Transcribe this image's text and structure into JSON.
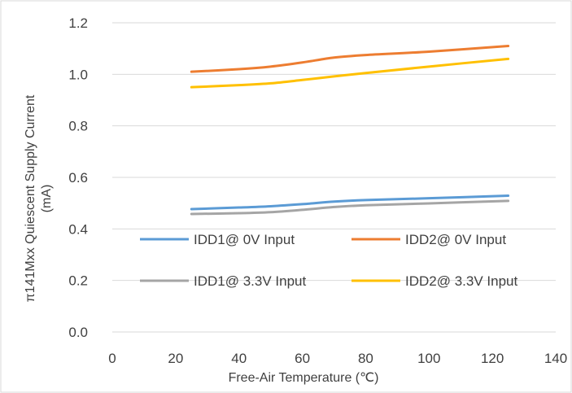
{
  "chart_data": {
    "type": "line",
    "xlabel": "Free-Air Temperature (℃)",
    "ylabel": [
      "π141Mxx Quiescent Supply Current",
      "(mA)"
    ],
    "xlim": [
      0,
      140
    ],
    "ylim": [
      0,
      1.2
    ],
    "x_ticks": [
      "0",
      "20",
      "40",
      "60",
      "80",
      "100",
      "120",
      "140"
    ],
    "y_ticks": [
      "0.0",
      "0.2",
      "0.4",
      "0.6",
      "0.8",
      "1.0",
      "1.2"
    ],
    "grid": "horizontal",
    "legend_position": "inside-bottom",
    "series": [
      {
        "name": "IDD1@ 0V Input",
        "color": "#5B9BD5",
        "x": [
          25,
          40,
          50,
          60,
          70,
          80,
          100,
          125
        ],
        "y": [
          0.477,
          0.483,
          0.488,
          0.496,
          0.506,
          0.512,
          0.519,
          0.529
        ]
      },
      {
        "name": "IDD2@ 0V Input",
        "color": "#ED7D31",
        "x": [
          25,
          40,
          50,
          60,
          70,
          80,
          100,
          125
        ],
        "y": [
          1.01,
          1.02,
          1.03,
          1.046,
          1.065,
          1.075,
          1.088,
          1.11
        ]
      },
      {
        "name": "IDD1@ 3.3V Input",
        "color": "#A5A5A5",
        "x": [
          25,
          40,
          50,
          60,
          70,
          80,
          100,
          125
        ],
        "y": [
          0.458,
          0.461,
          0.465,
          0.474,
          0.485,
          0.492,
          0.499,
          0.509
        ]
      },
      {
        "name": "IDD2@ 3.3V Input",
        "color": "#FFC000",
        "x": [
          25,
          40,
          50,
          60,
          70,
          80,
          100,
          125
        ],
        "y": [
          0.95,
          0.958,
          0.965,
          0.978,
          0.992,
          1.005,
          1.03,
          1.06
        ]
      }
    ]
  }
}
